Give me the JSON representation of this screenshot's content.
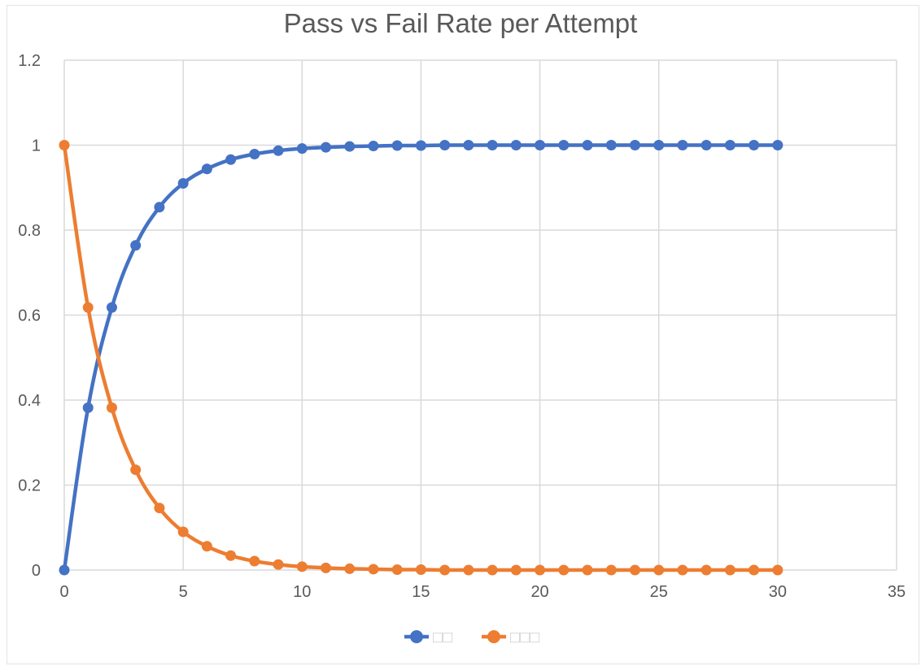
{
  "chart_data": {
    "type": "line",
    "title": "Pass vs Fail Rate per Attempt",
    "xlabel": "",
    "ylabel": "",
    "xlim": [
      0,
      35
    ],
    "ylim": [
      0,
      1.2
    ],
    "x_ticks": [
      "0",
      "5",
      "10",
      "15",
      "20",
      "25",
      "30",
      "35"
    ],
    "y_ticks": [
      "0",
      "0.2",
      "0.4",
      "0.6",
      "0.8",
      "1",
      "1.2"
    ],
    "grid": true,
    "legend_position": "bottom",
    "x": [
      0,
      1,
      2,
      3,
      4,
      5,
      6,
      7,
      8,
      9,
      10,
      11,
      12,
      13,
      14,
      15,
      16,
      17,
      18,
      19,
      20,
      21,
      22,
      23,
      24,
      25,
      26,
      27,
      28,
      29,
      30
    ],
    "series": [
      {
        "name": "□□",
        "color": "#4472c4",
        "values": [
          0,
          0.382,
          0.618,
          0.764,
          0.854,
          0.91,
          0.944,
          0.966,
          0.979,
          0.987,
          0.992,
          0.995,
          0.997,
          0.998,
          0.999,
          0.999,
          1,
          1,
          1,
          1,
          1,
          1,
          1,
          1,
          1,
          1,
          1,
          1,
          1,
          1,
          1
        ]
      },
      {
        "name": "□□□",
        "color": "#ed7d31",
        "values": [
          1,
          0.618,
          0.382,
          0.236,
          0.146,
          0.09,
          0.056,
          0.034,
          0.021,
          0.013,
          0.008,
          0.005,
          0.003,
          0.002,
          0.001,
          0.001,
          0,
          0,
          0,
          0,
          0,
          0,
          0,
          0,
          0,
          0,
          0,
          0,
          0,
          0,
          0
        ]
      }
    ]
  }
}
